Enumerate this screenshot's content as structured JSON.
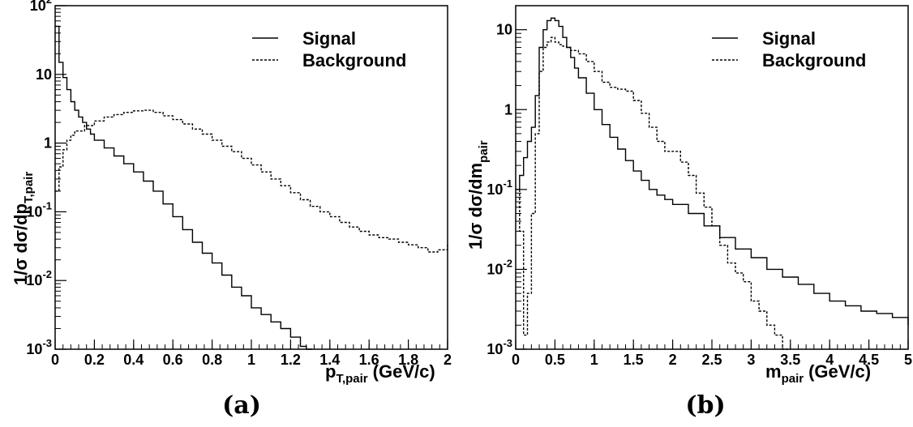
{
  "chart_data": [
    {
      "type": "line",
      "panel": "a",
      "caption": "(a)",
      "xlabel_main": "p",
      "xlabel_sub": "T,pair",
      "xlabel_unit": "(GeV/c)",
      "ylabel_main": "1/σ dσ/dp",
      "ylabel_sub": "T,pair",
      "xlim": [
        0,
        2
      ],
      "ylim": [
        0.001,
        100
      ],
      "yscale": "log",
      "xticks": [
        0,
        0.2,
        0.4,
        0.6,
        0.8,
        1,
        1.2,
        1.4,
        1.6,
        1.8,
        2
      ],
      "xtick_labels": [
        "0",
        "0.2",
        "0.4",
        "0.6",
        "0.8",
        "1",
        "1.2",
        "1.4",
        "1.6",
        "1.8",
        "2"
      ],
      "yticks": [
        100,
        10,
        1,
        0.1,
        0.01,
        0.001
      ],
      "ytick_labels": [
        {
          "base": "10",
          "exp": "2"
        },
        {
          "base": "10",
          "exp": ""
        },
        {
          "base": "1",
          "exp": ""
        },
        {
          "base": "10",
          "exp": "-1"
        },
        {
          "base": "10",
          "exp": "-2"
        },
        {
          "base": "10",
          "exp": "-3"
        }
      ],
      "legend_position": "top-right",
      "series": [
        {
          "name": "Signal",
          "style": "solid",
          "x": [
            0.0,
            0.02,
            0.04,
            0.06,
            0.08,
            0.1,
            0.12,
            0.14,
            0.16,
            0.18,
            0.2,
            0.25,
            0.3,
            0.35,
            0.4,
            0.45,
            0.5,
            0.55,
            0.6,
            0.65,
            0.7,
            0.75,
            0.8,
            0.85,
            0.9,
            0.95,
            1.0,
            1.05,
            1.1,
            1.15,
            1.2,
            1.25,
            1.28
          ],
          "y": [
            50,
            15,
            9,
            6,
            4,
            3,
            2.4,
            2.0,
            1.6,
            1.35,
            1.1,
            0.85,
            0.65,
            0.5,
            0.38,
            0.28,
            0.2,
            0.13,
            0.085,
            0.055,
            0.036,
            0.025,
            0.018,
            0.012,
            0.008,
            0.006,
            0.004,
            0.0032,
            0.0025,
            0.002,
            0.0015,
            0.0011,
            0.001
          ]
        },
        {
          "name": "Background",
          "style": "dashed",
          "x": [
            0.0,
            0.02,
            0.04,
            0.06,
            0.08,
            0.1,
            0.15,
            0.2,
            0.25,
            0.3,
            0.35,
            0.4,
            0.45,
            0.5,
            0.55,
            0.6,
            0.65,
            0.7,
            0.75,
            0.8,
            0.85,
            0.9,
            0.95,
            1.0,
            1.05,
            1.1,
            1.15,
            1.2,
            1.25,
            1.3,
            1.35,
            1.4,
            1.45,
            1.5,
            1.55,
            1.6,
            1.65,
            1.7,
            1.75,
            1.8,
            1.85,
            1.9,
            1.95,
            2.0
          ],
          "y": [
            0.2,
            0.45,
            0.8,
            1.1,
            1.3,
            1.5,
            1.8,
            2.1,
            2.4,
            2.6,
            2.8,
            2.95,
            3.0,
            2.8,
            2.5,
            2.2,
            1.9,
            1.6,
            1.35,
            1.1,
            0.9,
            0.75,
            0.6,
            0.48,
            0.38,
            0.3,
            0.24,
            0.19,
            0.15,
            0.12,
            0.1,
            0.085,
            0.07,
            0.06,
            0.052,
            0.046,
            0.042,
            0.04,
            0.036,
            0.033,
            0.03,
            0.026,
            0.028,
            0.035
          ]
        }
      ]
    },
    {
      "type": "line",
      "panel": "b",
      "caption": "(b)",
      "xlabel_main": "m",
      "xlabel_sub": "pair",
      "xlabel_unit": "(GeV/c)",
      "ylabel_main": "1/σ dσ/dm",
      "ylabel_sub": "pair",
      "xlim": [
        0,
        5
      ],
      "ylim": [
        0.001,
        20
      ],
      "yscale": "log",
      "xticks": [
        0,
        0.5,
        1,
        1.5,
        2,
        2.5,
        3,
        3.5,
        4,
        4.5,
        5
      ],
      "xtick_labels": [
        "0",
        "0.5",
        "1",
        "1.5",
        "2",
        "2.5",
        "3",
        "3.5",
        "4",
        "4.5",
        "5"
      ],
      "yticks": [
        10,
        1,
        0.1,
        0.01,
        0.001
      ],
      "ytick_labels": [
        {
          "base": "10",
          "exp": ""
        },
        {
          "base": "1",
          "exp": ""
        },
        {
          "base": "10",
          "exp": "-1"
        },
        {
          "base": "10",
          "exp": "-2"
        },
        {
          "base": "10",
          "exp": "-3"
        }
      ],
      "legend_position": "top-right",
      "series": [
        {
          "name": "Signal",
          "style": "solid",
          "x": [
            0.0,
            0.05,
            0.1,
            0.15,
            0.2,
            0.25,
            0.3,
            0.35,
            0.4,
            0.45,
            0.5,
            0.55,
            0.6,
            0.65,
            0.7,
            0.75,
            0.8,
            0.9,
            1.0,
            1.1,
            1.2,
            1.3,
            1.4,
            1.5,
            1.6,
            1.7,
            1.8,
            1.9,
            2.0,
            2.2,
            2.4,
            2.6,
            2.8,
            3.0,
            3.2,
            3.4,
            3.6,
            3.8,
            4.0,
            4.2,
            4.4,
            4.6,
            4.8,
            5.0
          ],
          "y": [
            0.1,
            0.15,
            0.25,
            0.4,
            0.6,
            1.5,
            6,
            10,
            13,
            14,
            13,
            11,
            8,
            6,
            4.5,
            3.3,
            2.5,
            1.6,
            1.0,
            0.65,
            0.45,
            0.32,
            0.23,
            0.17,
            0.13,
            0.1,
            0.085,
            0.075,
            0.065,
            0.05,
            0.035,
            0.025,
            0.018,
            0.014,
            0.01,
            0.008,
            0.0065,
            0.005,
            0.004,
            0.0035,
            0.003,
            0.0028,
            0.0025,
            0.002
          ]
        },
        {
          "name": "Background",
          "style": "dashed",
          "x": [
            0.0,
            0.05,
            0.1,
            0.15,
            0.2,
            0.25,
            0.3,
            0.35,
            0.4,
            0.45,
            0.5,
            0.55,
            0.6,
            0.65,
            0.7,
            0.8,
            0.9,
            1.0,
            1.1,
            1.2,
            1.3,
            1.4,
            1.5,
            1.6,
            1.7,
            1.8,
            1.9,
            2.0,
            2.1,
            2.2,
            2.3,
            2.4,
            2.5,
            2.6,
            2.7,
            2.8,
            2.9,
            3.0,
            3.1,
            3.2,
            3.3,
            3.4
          ],
          "y": [
            0.1,
            0.03,
            0.0015,
            0.005,
            0.05,
            0.5,
            3,
            6,
            7,
            8,
            7,
            6.5,
            6.2,
            6.0,
            5.5,
            5.0,
            4.0,
            3.0,
            2.2,
            1.9,
            1.8,
            1.7,
            1.3,
            0.9,
            0.6,
            0.4,
            0.3,
            0.3,
            0.22,
            0.15,
            0.09,
            0.06,
            0.035,
            0.02,
            0.012,
            0.009,
            0.007,
            0.004,
            0.003,
            0.002,
            0.0015,
            0.001
          ]
        }
      ]
    }
  ]
}
